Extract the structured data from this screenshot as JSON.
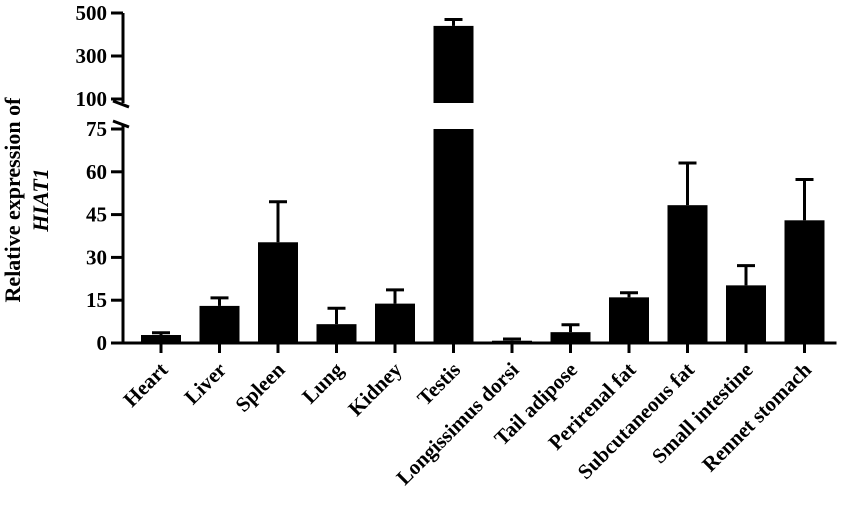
{
  "chart_data": {
    "type": "bar",
    "ylabel": "Relative expression of",
    "ylabel_italic": "HIAT1",
    "categories": [
      "Heart",
      "Liver",
      "Spleen",
      "Lung",
      "Kidney",
      "Testis",
      "Longissimus dorsi",
      "Tail adipose",
      "Perirenal fat",
      "Subcutaneous fat",
      "Small intestine",
      "Rennet stomach"
    ],
    "values": [
      2.8,
      13,
      35.3,
      6.6,
      13.8,
      440,
      0.8,
      3.8,
      16,
      48.3,
      20.2,
      43
    ],
    "errors": [
      0.8,
      2.8,
      14.2,
      5.6,
      4.8,
      30,
      0.6,
      2.6,
      1.6,
      14.8,
      6.9,
      14.3
    ],
    "bar_color": "#000000",
    "broken_axis": true,
    "lower_segment": {
      "ylim": [
        0,
        75
      ],
      "ticks": [
        "0",
        "15",
        "30",
        "45",
        "60",
        "75"
      ],
      "tick_values": [
        0,
        15,
        30,
        45,
        60,
        75
      ]
    },
    "upper_segment": {
      "ylim": [
        100,
        500
      ],
      "ticks": [
        "100",
        "300",
        "500"
      ],
      "tick_values": [
        100,
        300,
        500
      ]
    },
    "grid": false,
    "legend": "none"
  }
}
